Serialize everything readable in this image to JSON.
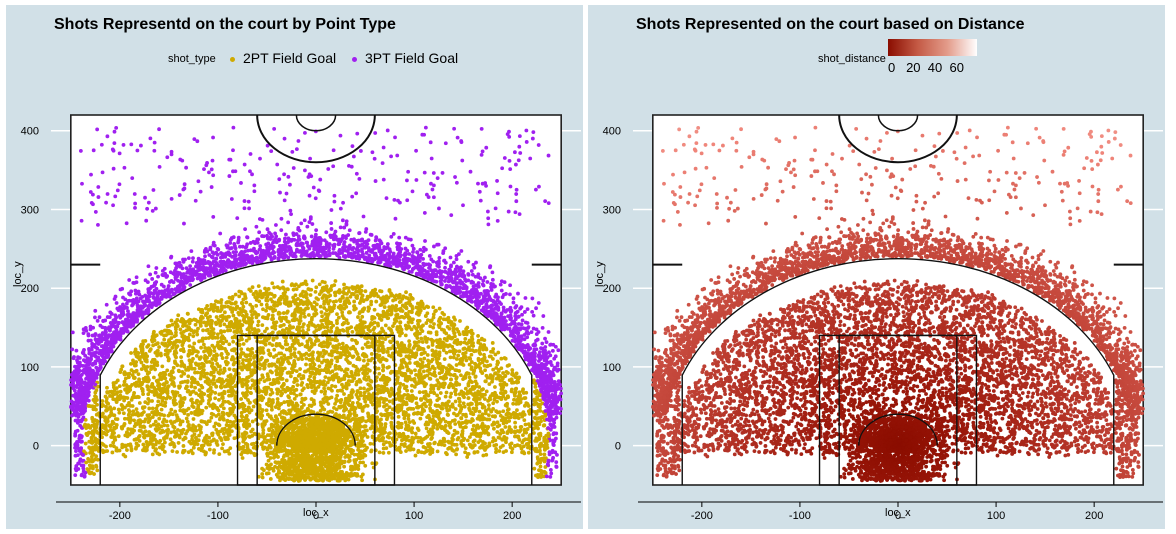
{
  "colors": {
    "panel_bg": "#d1e0e7",
    "two_pt": "#cfaa00",
    "three_pt": "#a020f0",
    "dist_low": "#8a0d00",
    "dist_high": "#ffffff"
  },
  "chart_data": [
    {
      "type": "scatter",
      "title": "Shots Representd on the court by Point Type",
      "xlabel": "loc_x",
      "ylabel": "loc_y",
      "xlim": [
        -260,
        260
      ],
      "ylim": [
        -50,
        420
      ],
      "x_ticks": [
        -200,
        -100,
        0,
        100,
        200
      ],
      "y_ticks": [
        0,
        100,
        200,
        300,
        400
      ],
      "legend": {
        "title": "shot_type",
        "position": "top",
        "entries": [
          "2PT Field Goal",
          "3PT Field Goal"
        ]
      },
      "series": [
        {
          "name": "2PT Field Goal",
          "color": "#cfaa00",
          "region": "inside three-point arc (distance < 23.75 ft)"
        },
        {
          "name": "3PT Field Goal",
          "color": "#a020f0",
          "region": "beyond three-point arc, mostly loc_y < 300"
        }
      ],
      "grid": true
    },
    {
      "type": "scatter",
      "title": "Shots Represented on the court based on Distance",
      "xlabel": "loc_x",
      "ylabel": "loc_y",
      "xlim": [
        -260,
        260
      ],
      "ylim": [
        -50,
        420
      ],
      "x_ticks": [
        -200,
        -100,
        0,
        100,
        200
      ],
      "y_ticks": [
        0,
        100,
        200,
        300,
        400
      ],
      "legend": {
        "title": "shot_distance",
        "position": "top",
        "type": "colorbar",
        "ticks": [
          0,
          20,
          40,
          60
        ]
      },
      "color_scale": {
        "low": "#8a0d00",
        "high": "#ffffff",
        "variable": "shot_distance"
      },
      "grid": true
    }
  ]
}
